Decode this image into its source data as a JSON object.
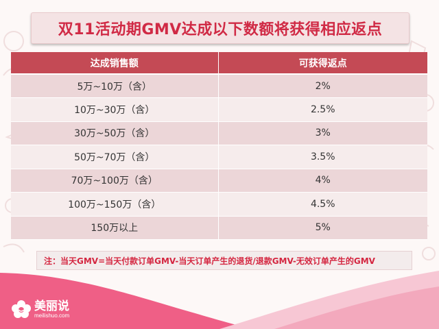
{
  "title": "双11活动期GMV达成以下数额将获得相应返点",
  "table": {
    "headers": [
      "达成销售额",
      "可获得返点"
    ],
    "rows": [
      {
        "range": "5万~10万（含）",
        "rebate": "2%"
      },
      {
        "range": "10万~30万（含）",
        "rebate": "2.5%"
      },
      {
        "range": "30万~50万（含）",
        "rebate": "3%"
      },
      {
        "range": "50万~70万（含）",
        "rebate": "3.5%"
      },
      {
        "range": "70万~100万（含）",
        "rebate": "4%"
      },
      {
        "range": "100万~150万（含）",
        "rebate": "4.5%"
      },
      {
        "range": "150万以上",
        "rebate": "5%"
      }
    ]
  },
  "note": "注：当天GMV=当天付款订单GMV-当天订单产生的退货/退款GMV-无效订单产生的GMV",
  "logo": {
    "name": "美丽说",
    "url": "meilishuo.com"
  },
  "colors": {
    "title_text": "#d02a45",
    "header_bg": "#c44a55",
    "row_odd": "#ecd6d8",
    "row_even": "#f6ecec",
    "note_text": "#d42640",
    "footer_pink": "#ef5f86"
  }
}
